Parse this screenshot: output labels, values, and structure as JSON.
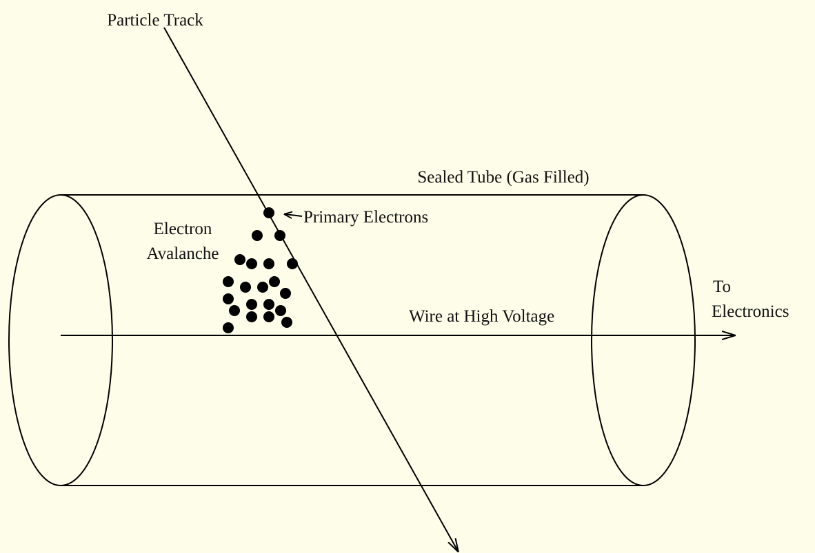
{
  "labels": {
    "particle_track": "Particle Track",
    "sealed_tube": "Sealed Tube (Gas Filled)",
    "primary_electrons": "Primary Electrons",
    "electron_avalanche": [
      "Electron",
      "Avalanche"
    ],
    "wire": "Wire at High Voltage",
    "to_electronics": [
      "To",
      "Electronics"
    ]
  }
}
